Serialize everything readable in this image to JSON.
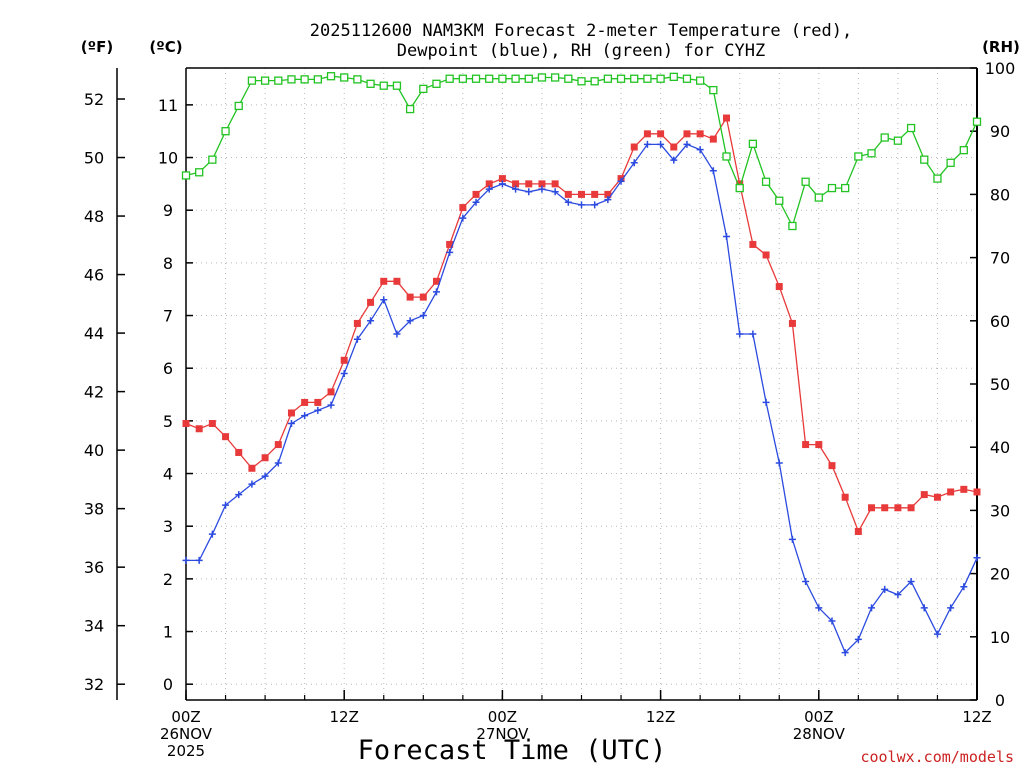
{
  "chart_data": {
    "type": "line",
    "title_line1": "2025112600 NAM3KM Forecast 2-meter Temperature (red),",
    "title_line2": "Dewpoint (blue), RH (green) for CYHZ",
    "xlabel": "Forecast Time (UTC)",
    "credit": "coolwx.com/models",
    "unit_labels": {
      "fahrenheit": "(ºF)",
      "celsius": "(ºC)",
      "rh": "(RH)"
    },
    "x_hours_range": [
      0,
      60
    ],
    "x_ticks": [
      {
        "hour": 0,
        "lines": [
          "00Z",
          "26NOV",
          "2025"
        ]
      },
      {
        "hour": 12,
        "lines": [
          "12Z"
        ]
      },
      {
        "hour": 24,
        "lines": [
          "00Z",
          "27NOV"
        ]
      },
      {
        "hour": 36,
        "lines": [
          "12Z"
        ]
      },
      {
        "hour": 48,
        "lines": [
          "00Z",
          "28NOV"
        ]
      },
      {
        "hour": 60,
        "lines": [
          "12Z"
        ]
      }
    ],
    "celsius_axis": {
      "range": [
        -0.3,
        11.7
      ],
      "ticks": [
        "0",
        "1",
        "2",
        "3",
        "4",
        "5",
        "6",
        "7",
        "8",
        "9",
        "10",
        "11"
      ]
    },
    "fahrenheit_axis": {
      "ticks": [
        "32",
        "34",
        "36",
        "38",
        "40",
        "42",
        "44",
        "46",
        "48",
        "50",
        "52"
      ]
    },
    "rh_axis": {
      "range": [
        0,
        100
      ],
      "ticks": [
        "0",
        "10",
        "20",
        "30",
        "40",
        "50",
        "60",
        "70",
        "80",
        "90",
        "100"
      ]
    },
    "x_hours": [
      0,
      1,
      2,
      3,
      4,
      5,
      6,
      7,
      8,
      9,
      10,
      11,
      12,
      13,
      14,
      15,
      16,
      17,
      18,
      19,
      20,
      21,
      22,
      23,
      24,
      25,
      26,
      27,
      28,
      29,
      30,
      31,
      32,
      33,
      34,
      35,
      36,
      37,
      38,
      39,
      40,
      41,
      42,
      43,
      44,
      45,
      46,
      47,
      48,
      49,
      50,
      51,
      52,
      53,
      54,
      55,
      56,
      57,
      58,
      59,
      60
    ],
    "series": [
      {
        "name": "2-meter Temperature",
        "unit": "C",
        "color": "#e83a3a",
        "marker": "filled-square",
        "values": [
          4.95,
          4.85,
          4.95,
          4.7,
          4.4,
          4.1,
          4.3,
          4.55,
          5.15,
          5.35,
          5.35,
          5.55,
          6.15,
          6.85,
          7.25,
          7.65,
          7.65,
          7.35,
          7.35,
          7.65,
          8.35,
          9.05,
          9.3,
          9.5,
          9.6,
          9.5,
          9.5,
          9.5,
          9.5,
          9.3,
          9.3,
          9.3,
          9.3,
          9.6,
          10.2,
          10.45,
          10.45,
          10.2,
          10.45,
          10.45,
          10.35,
          10.75,
          9.5,
          8.35,
          8.15,
          7.55,
          6.85,
          4.55,
          4.55,
          4.15,
          3.55,
          2.9,
          3.35,
          3.35,
          3.35,
          3.35,
          3.6,
          3.55,
          3.65,
          3.7,
          3.65
        ]
      },
      {
        "name": "Dewpoint",
        "unit": "C",
        "color": "#2b4adf",
        "marker": "plus",
        "values": [
          2.35,
          2.35,
          2.85,
          3.4,
          3.6,
          3.8,
          3.95,
          4.2,
          4.95,
          5.1,
          5.2,
          5.3,
          5.9,
          6.55,
          6.9,
          7.3,
          6.65,
          6.9,
          7.0,
          7.45,
          8.2,
          8.85,
          9.15,
          9.4,
          9.5,
          9.4,
          9.35,
          9.4,
          9.35,
          9.15,
          9.1,
          9.1,
          9.2,
          9.55,
          9.9,
          10.25,
          10.25,
          9.95,
          10.25,
          10.15,
          9.75,
          8.5,
          6.65,
          6.65,
          5.35,
          4.2,
          2.75,
          1.95,
          1.45,
          1.2,
          0.6,
          0.85,
          1.45,
          1.8,
          1.7,
          1.95,
          1.45,
          0.95,
          1.45,
          1.85,
          2.4
        ]
      },
      {
        "name": "RH",
        "unit": "%",
        "color": "#22c322",
        "marker": "open-square",
        "values": [
          83,
          83.5,
          85.5,
          90,
          94,
          98,
          98,
          98,
          98.2,
          98.2,
          98.2,
          98.7,
          98.5,
          98.2,
          97.5,
          97.2,
          97.2,
          93.5,
          96.7,
          97.5,
          98.3,
          98.3,
          98.3,
          98.3,
          98.3,
          98.3,
          98.3,
          98.5,
          98.5,
          98.3,
          97.9,
          97.9,
          98.3,
          98.3,
          98.3,
          98.3,
          98.3,
          98.6,
          98.3,
          98.0,
          96.5,
          86.0,
          81.0,
          88.0,
          82,
          79,
          75,
          82,
          79.5,
          81,
          81,
          86,
          86.5,
          89,
          88.5,
          90.5,
          85.5,
          82.5,
          85,
          87,
          91.5
        ]
      }
    ]
  }
}
